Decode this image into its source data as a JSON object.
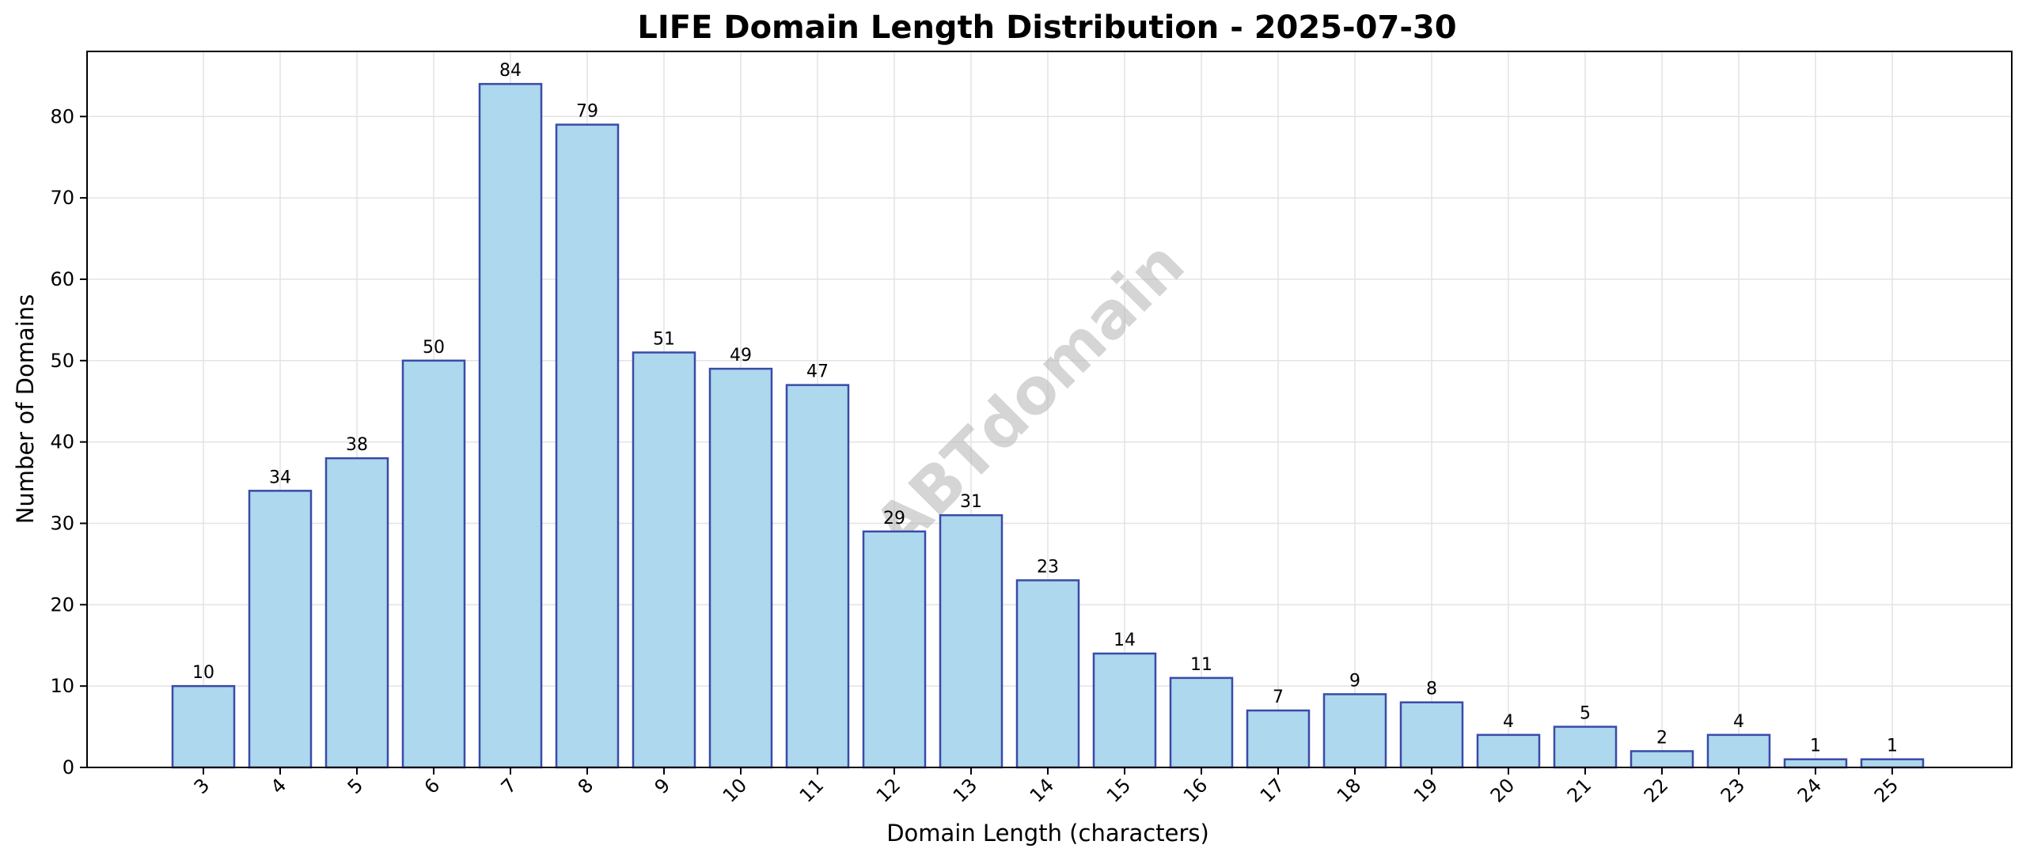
{
  "chart_data": {
    "type": "bar",
    "title": "LIFE Domain Length Distribution - 2025-07-30",
    "xlabel": "Domain Length (characters)",
    "ylabel": "Number of Domains",
    "categories": [
      "3",
      "4",
      "5",
      "6",
      "7",
      "8",
      "9",
      "10",
      "11",
      "12",
      "13",
      "14",
      "15",
      "16",
      "17",
      "18",
      "19",
      "20",
      "21",
      "22",
      "23",
      "24",
      "25"
    ],
    "values": [
      10,
      34,
      38,
      50,
      84,
      79,
      51,
      49,
      47,
      29,
      31,
      23,
      14,
      11,
      7,
      9,
      8,
      4,
      5,
      2,
      4,
      1,
      1
    ],
    "ylim": [
      0,
      88
    ],
    "yticks": [
      0,
      10,
      20,
      30,
      40,
      50,
      60,
      70,
      80
    ],
    "grid": true,
    "bar_color": "#add8ed",
    "bar_edge_color": "#3a4aa8",
    "watermark": "ABTdomain"
  }
}
